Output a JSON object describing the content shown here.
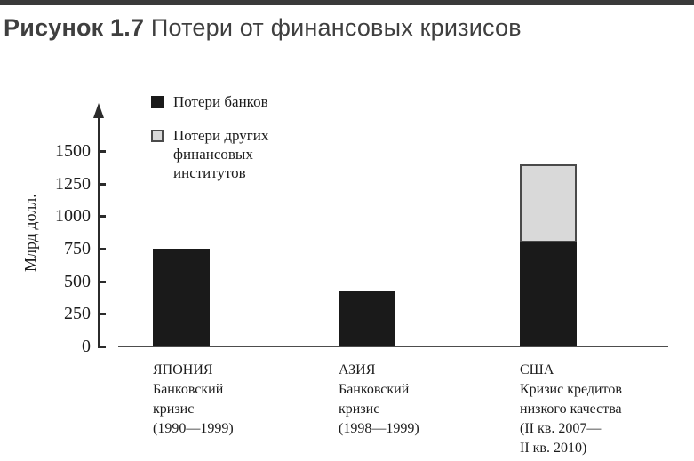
{
  "figure": {
    "title_prefix": "Рисунок 1.7",
    "title_rest": " Потери от финансовых кризисов"
  },
  "chart_data": {
    "type": "bar",
    "stacked": true,
    "title": "Потери от финансовых кризисов",
    "ylabel": "Млрд долл.",
    "yticks": [
      0,
      250,
      500,
      750,
      1000,
      1250,
      1500
    ],
    "ylim": [
      0,
      1500
    ],
    "grid": false,
    "legend_position": "top-left-inside",
    "categories": [
      {
        "lines": [
          "ЯПОНИЯ",
          "Банковский",
          "кризис",
          "(1990—1999)"
        ]
      },
      {
        "lines": [
          "АЗИЯ",
          "Банковский",
          "кризис",
          "(1998—1999)"
        ]
      },
      {
        "lines": [
          "США",
          "Кризис кредитов",
          "низкого качества",
          "(II кв. 2007—",
          "II кв. 2010)"
        ]
      }
    ],
    "series": [
      {
        "name": "Потери банков",
        "legend_lines": [
          "Потери банков"
        ],
        "color": "#1a1a1a",
        "values": [
          750,
          425,
          800
        ]
      },
      {
        "name": "Потери других финансовых институтов",
        "legend_lines": [
          "Потери других",
          "финансовых",
          "институтов"
        ],
        "color": "#d9d9d9",
        "border_color": "#4a4a4a",
        "values": [
          0,
          0,
          600
        ]
      }
    ]
  },
  "colors": {
    "top_strip": "#3a3a3a",
    "title": "#3f3f3f",
    "axis": "#2b2b2b"
  }
}
